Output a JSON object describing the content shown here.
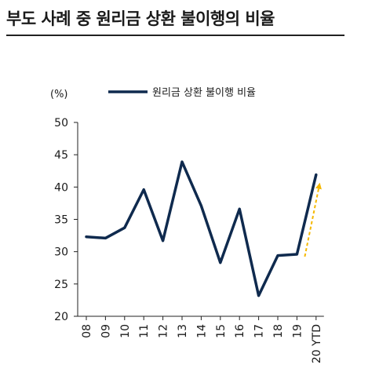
{
  "header": {
    "title": "부도 사례 중 원리금 상환 불이행의 비율"
  },
  "chart_data": {
    "type": "line",
    "unit_label": "(%)",
    "categories": [
      "08",
      "09",
      "10",
      "11",
      "12",
      "13",
      "14",
      "15",
      "16",
      "17",
      "18",
      "19",
      "20 YTD"
    ],
    "series": [
      {
        "name": "원리금 상환 불이행 비율",
        "color": "#0f2a4e",
        "values": [
          32.3,
          32.1,
          33.7,
          39.6,
          31.7,
          43.9,
          37.1,
          28.3,
          36.6,
          23.2,
          29.4,
          29.6,
          41.9
        ]
      }
    ],
    "ylim": [
      20,
      50
    ],
    "yticks": [
      20,
      25,
      30,
      35,
      40,
      45,
      50
    ],
    "grid": false,
    "legend_position": "top",
    "annotation": {
      "type": "dashed-arrow",
      "color": "#f5b800",
      "from_category": "19",
      "to_category": "20 YTD"
    }
  }
}
